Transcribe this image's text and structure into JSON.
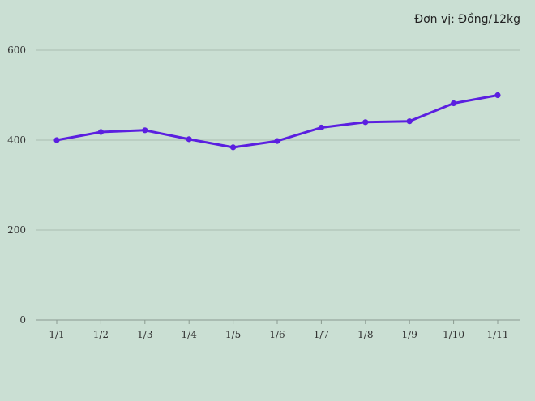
{
  "chart_data": {
    "type": "line",
    "unit_label": "Đơn vị: Đồng/12kg",
    "categories": [
      "1/1",
      "1/2",
      "1/3",
      "1/4",
      "1/5",
      "1/6",
      "1/7",
      "1/8",
      "1/9",
      "1/10",
      "1/11"
    ],
    "series": [
      {
        "values": [
          400,
          418,
          422,
          402,
          384,
          398,
          428,
          440,
          442,
          482,
          500
        ],
        "color": "#5b1fe0"
      }
    ],
    "ylim": [
      0,
      600
    ],
    "yticks": [
      0,
      200,
      400,
      600
    ],
    "grid": true,
    "background": "#cadfd3",
    "grid_color": "#a9bdb1",
    "axis_color": "#8a9a90"
  }
}
